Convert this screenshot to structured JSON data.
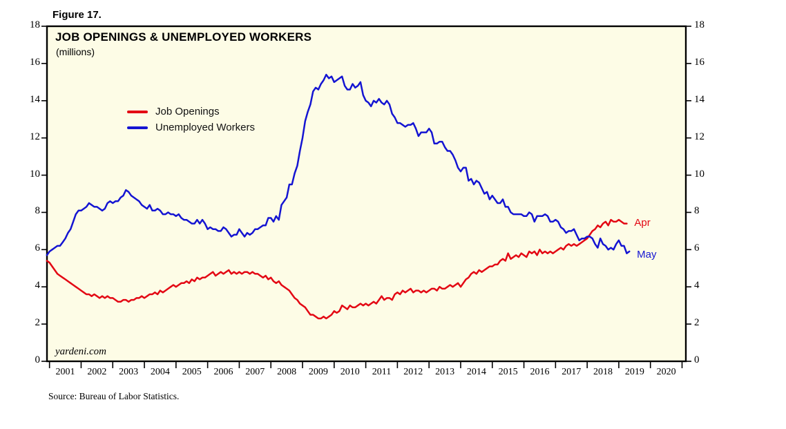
{
  "figure_label": "Figure 17.",
  "chart": {
    "title": "JOB OPENINGS & UNEMPLOYED WORKERS",
    "subtitle": "(millions)",
    "watermark": "yardeni.com"
  },
  "source": "Source: Bureau of Labor Statistics.",
  "chart_data": {
    "type": "line",
    "title": "JOB OPENINGS & UNEMPLOYED WORKERS",
    "units": "millions",
    "frequency": "monthly",
    "x_start": 2000.917,
    "x_step": 0.08333,
    "x_range": [
      2000.92,
      2021.12
    ],
    "ylim": [
      0,
      18
    ],
    "yticks": [
      0,
      2,
      4,
      6,
      8,
      10,
      12,
      14,
      16,
      18
    ],
    "year_labels": [
      "2001",
      "2002",
      "2003",
      "2004",
      "2005",
      "2006",
      "2007",
      "2008",
      "2009",
      "2010",
      "2011",
      "2012",
      "2013",
      "2014",
      "2015",
      "2016",
      "2017",
      "2018",
      "2019",
      "2020"
    ],
    "grid": false,
    "legend_position": "upper-left-inside",
    "plot_bg": "#FDFCE6",
    "series": [
      {
        "name": "Job Openings",
        "color": "#E30613",
        "end_label": "Apr",
        "values": [
          5.4,
          5.3,
          5.1,
          4.9,
          4.7,
          4.6,
          4.5,
          4.4,
          4.3,
          4.2,
          4.1,
          4.0,
          3.9,
          3.8,
          3.7,
          3.6,
          3.6,
          3.5,
          3.6,
          3.5,
          3.4,
          3.5,
          3.4,
          3.5,
          3.4,
          3.4,
          3.3,
          3.2,
          3.2,
          3.3,
          3.3,
          3.2,
          3.3,
          3.3,
          3.4,
          3.4,
          3.5,
          3.4,
          3.5,
          3.6,
          3.6,
          3.7,
          3.6,
          3.8,
          3.7,
          3.8,
          3.9,
          4.0,
          4.1,
          4.0,
          4.1,
          4.2,
          4.2,
          4.3,
          4.2,
          4.4,
          4.3,
          4.5,
          4.4,
          4.5,
          4.5,
          4.6,
          4.7,
          4.8,
          4.6,
          4.7,
          4.8,
          4.7,
          4.8,
          4.9,
          4.7,
          4.8,
          4.7,
          4.8,
          4.7,
          4.8,
          4.8,
          4.7,
          4.8,
          4.7,
          4.7,
          4.6,
          4.5,
          4.6,
          4.4,
          4.5,
          4.3,
          4.2,
          4.3,
          4.1,
          4.0,
          3.9,
          3.8,
          3.6,
          3.4,
          3.3,
          3.1,
          3.0,
          2.9,
          2.7,
          2.5,
          2.5,
          2.4,
          2.3,
          2.3,
          2.4,
          2.3,
          2.4,
          2.5,
          2.7,
          2.6,
          2.7,
          3.0,
          2.9,
          2.8,
          3.0,
          2.9,
          2.9,
          3.0,
          3.1,
          3.0,
          3.1,
          3.0,
          3.1,
          3.2,
          3.1,
          3.3,
          3.5,
          3.3,
          3.4,
          3.4,
          3.3,
          3.6,
          3.7,
          3.6,
          3.8,
          3.7,
          3.8,
          3.9,
          3.7,
          3.8,
          3.8,
          3.7,
          3.8,
          3.7,
          3.8,
          3.9,
          3.9,
          3.8,
          4.0,
          3.9,
          3.9,
          4.0,
          4.1,
          4.0,
          4.1,
          4.2,
          4.0,
          4.2,
          4.4,
          4.5,
          4.7,
          4.8,
          4.7,
          4.9,
          4.8,
          4.9,
          5.0,
          5.1,
          5.1,
          5.2,
          5.2,
          5.4,
          5.5,
          5.4,
          5.8,
          5.5,
          5.6,
          5.7,
          5.6,
          5.8,
          5.7,
          5.6,
          5.9,
          5.8,
          5.9,
          5.7,
          6.0,
          5.8,
          5.9,
          5.8,
          5.9,
          5.8,
          5.9,
          6.0,
          6.1,
          6.0,
          6.2,
          6.3,
          6.2,
          6.3,
          6.2,
          6.3,
          6.4,
          6.5,
          6.6,
          6.8,
          7.0,
          7.1,
          7.3,
          7.2,
          7.4,
          7.5,
          7.3,
          7.6,
          7.5,
          7.5,
          7.6,
          7.5,
          7.4,
          7.4
        ]
      },
      {
        "name": "Unemployed Workers",
        "color": "#1414D2",
        "end_label": "May",
        "values": [
          5.7,
          5.9,
          6.0,
          6.1,
          6.2,
          6.2,
          6.4,
          6.6,
          6.9,
          7.1,
          7.5,
          7.9,
          8.1,
          8.1,
          8.2,
          8.3,
          8.5,
          8.4,
          8.3,
          8.3,
          8.2,
          8.1,
          8.2,
          8.5,
          8.6,
          8.5,
          8.6,
          8.6,
          8.8,
          8.9,
          9.2,
          9.1,
          8.9,
          8.8,
          8.7,
          8.6,
          8.4,
          8.3,
          8.2,
          8.4,
          8.1,
          8.1,
          8.2,
          8.1,
          7.9,
          7.9,
          8.0,
          7.9,
          7.9,
          7.8,
          7.9,
          7.7,
          7.6,
          7.6,
          7.5,
          7.4,
          7.4,
          7.6,
          7.4,
          7.6,
          7.4,
          7.1,
          7.2,
          7.1,
          7.1,
          7.0,
          7.0,
          7.2,
          7.1,
          6.9,
          6.7,
          6.8,
          6.8,
          7.1,
          6.9,
          6.7,
          6.9,
          6.8,
          6.9,
          7.1,
          7.1,
          7.2,
          7.3,
          7.3,
          7.7,
          7.7,
          7.5,
          7.8,
          7.6,
          8.4,
          8.6,
          8.8,
          9.5,
          9.5,
          10.1,
          10.5,
          11.3,
          12.0,
          12.9,
          13.4,
          13.8,
          14.5,
          14.7,
          14.6,
          14.9,
          15.1,
          15.4,
          15.2,
          15.3,
          15.0,
          15.1,
          15.2,
          15.3,
          14.8,
          14.6,
          14.6,
          14.9,
          14.7,
          14.8,
          15.0,
          14.3,
          14.0,
          13.9,
          13.7,
          14.0,
          13.9,
          14.1,
          13.9,
          13.8,
          14.0,
          13.8,
          13.3,
          13.1,
          12.8,
          12.8,
          12.7,
          12.6,
          12.7,
          12.7,
          12.8,
          12.5,
          12.1,
          12.3,
          12.3,
          12.3,
          12.5,
          12.3,
          11.7,
          11.7,
          11.8,
          11.8,
          11.5,
          11.3,
          11.3,
          11.1,
          10.8,
          10.4,
          10.2,
          10.4,
          10.4,
          9.7,
          9.8,
          9.5,
          9.7,
          9.6,
          9.3,
          9.0,
          9.1,
          8.7,
          8.9,
          8.7,
          8.5,
          8.5,
          8.7,
          8.3,
          8.3,
          8.0,
          7.9,
          7.9,
          7.9,
          7.9,
          7.8,
          7.8,
          8.0,
          7.9,
          7.5,
          7.8,
          7.8,
          7.8,
          7.9,
          7.8,
          7.5,
          7.5,
          7.6,
          7.5,
          7.2,
          7.1,
          6.9,
          7.0,
          7.0,
          7.1,
          6.8,
          6.5,
          6.6,
          6.6,
          6.7,
          6.7,
          6.6,
          6.3,
          6.1,
          6.6,
          6.3,
          6.2,
          6.0,
          6.1,
          6.0,
          6.3,
          6.5,
          6.2,
          6.2,
          5.8,
          5.9
        ]
      }
    ]
  }
}
